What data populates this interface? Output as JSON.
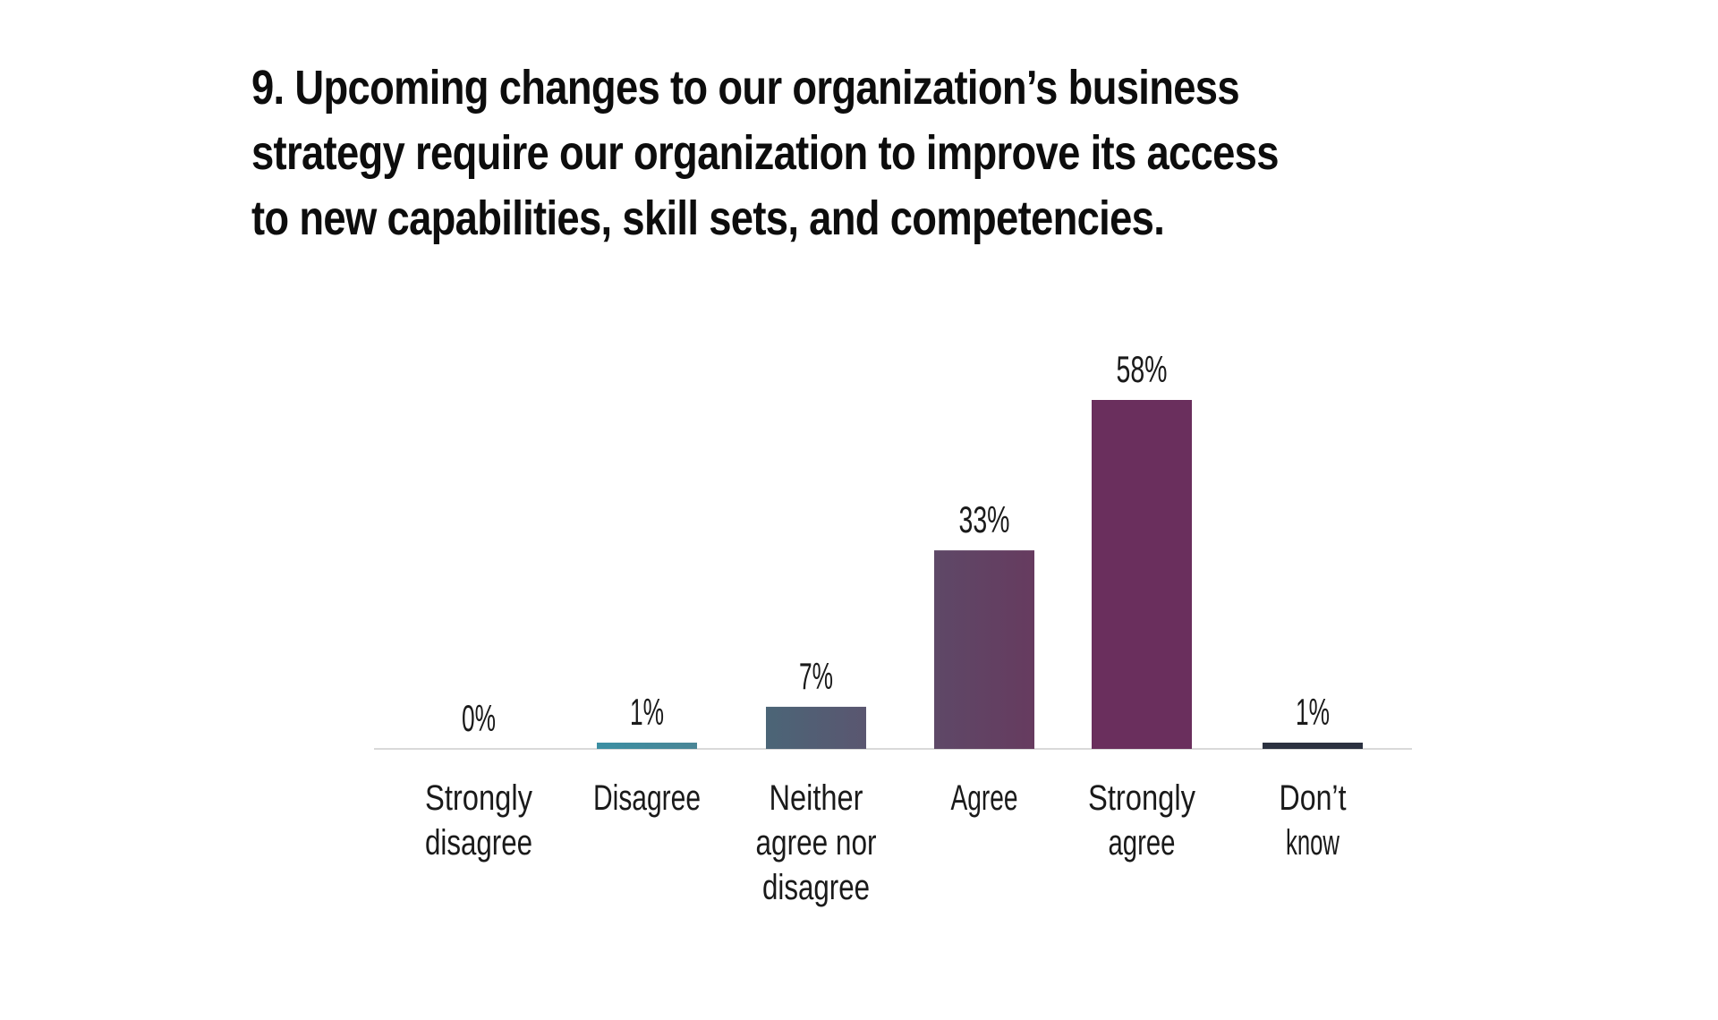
{
  "chart_data": {
    "type": "bar",
    "title": "9. Upcoming changes to our organization’s business strategy require our organization to improve its access to new capabilities, skill sets, and competencies.",
    "categories": [
      [
        "Strongly",
        "disagree"
      ],
      [
        "Disagree"
      ],
      [
        "Neither",
        "agree nor",
        "disagree"
      ],
      [
        "Agree"
      ],
      [
        "Strongly",
        "agree"
      ],
      [
        "Don’t",
        "know"
      ]
    ],
    "values": [
      0,
      1,
      7,
      33,
      58,
      1
    ],
    "value_labels": [
      "0%",
      "1%",
      "7%",
      "33%",
      "58%",
      "1%"
    ],
    "colors": [
      [
        "#3e9db0",
        "#3e9db0"
      ],
      [
        "#3b8fa3",
        "#4a8696"
      ],
      [
        "#4b6577",
        "#5a5670"
      ],
      [
        "#5e4867",
        "#663b5f"
      ],
      [
        "#6a2f5d",
        "#6a2f5d"
      ],
      [
        "#2b3140",
        "#2b3140"
      ]
    ],
    "baseline_color": "#d9d9d9",
    "ylim": [
      0,
      58
    ],
    "grid": false,
    "legend": "none"
  }
}
